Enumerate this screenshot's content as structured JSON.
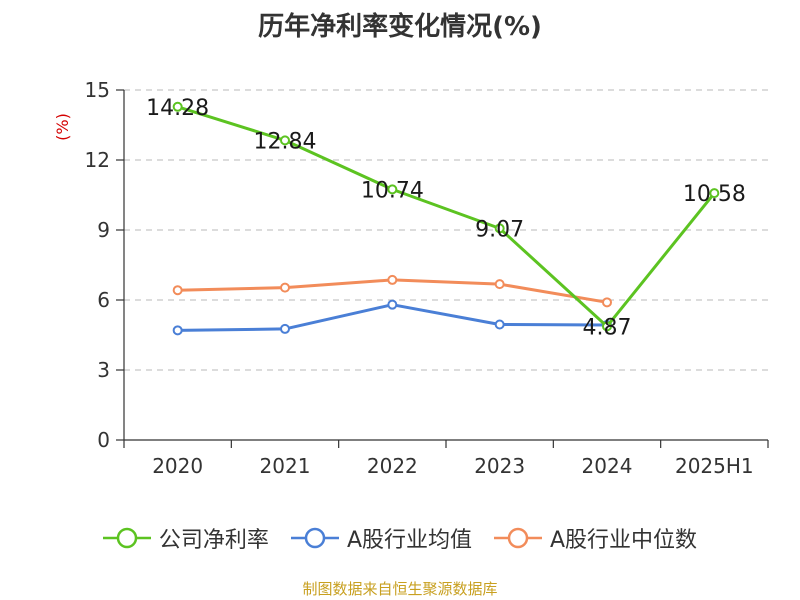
{
  "chart_data": {
    "type": "line",
    "title": "历年净利率变化情况(%)",
    "ylabel": "(%)",
    "xlabel": "",
    "ylim": [
      0,
      15
    ],
    "yticks": [
      0,
      3,
      6,
      9,
      12,
      15
    ],
    "categories": [
      "2020",
      "2021",
      "2022",
      "2023",
      "2024",
      "2025H1"
    ],
    "grid": true,
    "legend_position": "bottom",
    "series": [
      {
        "name": "公司净利率",
        "color": "#5cc321",
        "values": [
          14.28,
          12.84,
          10.74,
          9.07,
          4.87,
          10.58
        ],
        "labels": [
          "14.28",
          "12.84",
          "10.74",
          "9.07",
          "4.87",
          "10.58"
        ]
      },
      {
        "name": "A股行业均值",
        "color": "#4a7fd6",
        "values": [
          4.7,
          4.76,
          5.8,
          4.95,
          4.93,
          null
        ]
      },
      {
        "name": "A股行业中位数",
        "color": "#f28c5a",
        "values": [
          6.42,
          6.53,
          6.86,
          6.68,
          5.9,
          null
        ]
      }
    ],
    "source": "制图数据来自恒生聚源数据库"
  }
}
